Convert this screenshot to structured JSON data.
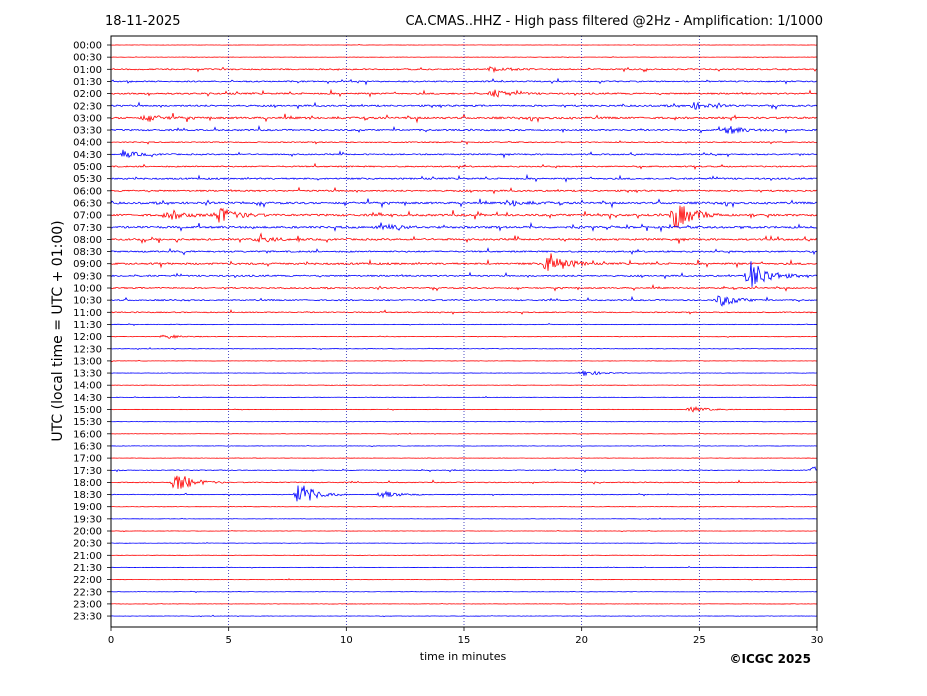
{
  "header": {
    "date": "18-11-2025",
    "title": "CA.CMAS..HHZ - High pass filtered @2Hz - Amplification: 1/1000"
  },
  "footer": {
    "copyright": "©ICGC 2025"
  },
  "colors": {
    "red_trace": "#ff0000",
    "blue_trace": "#0000ff",
    "axis": "#000000"
  },
  "chart_data": {
    "type": "line",
    "subtype": "helicorder",
    "xlabel": "time in minutes",
    "ylabel": "UTC (local time = UTC + 01:00)",
    "xlim": [
      0,
      30
    ],
    "x_ticks": [
      "0",
      "5",
      "10",
      "15",
      "20",
      "25",
      "30"
    ],
    "vertical_gridlines_at": [
      5,
      10,
      15,
      20,
      25
    ],
    "rows": [
      "00:00",
      "00:30",
      "01:00",
      "01:30",
      "02:00",
      "02:30",
      "03:00",
      "03:30",
      "04:00",
      "04:30",
      "05:00",
      "05:30",
      "06:00",
      "06:30",
      "07:00",
      "07:30",
      "08:00",
      "08:30",
      "09:00",
      "09:30",
      "10:00",
      "10:30",
      "11:00",
      "11:30",
      "12:00",
      "12:30",
      "13:00",
      "13:30",
      "14:00",
      "14:30",
      "15:00",
      "15:30",
      "16:00",
      "16:30",
      "17:00",
      "17:30",
      "18:00",
      "18:30",
      "19:00",
      "19:30",
      "20:00",
      "20:30",
      "21:00",
      "21:30",
      "22:00",
      "22:30",
      "23:00",
      "23:30"
    ],
    "row_colors": [
      "red",
      "red",
      "red",
      "blue",
      "red",
      "blue",
      "red",
      "blue",
      "red",
      "blue",
      "red",
      "blue",
      "red",
      "blue",
      "red",
      "blue",
      "red",
      "blue",
      "red",
      "blue",
      "red",
      "blue",
      "red",
      "blue",
      "red",
      "blue",
      "red",
      "blue",
      "red",
      "blue",
      "red",
      "blue",
      "red",
      "blue",
      "red",
      "blue",
      "red",
      "blue",
      "red",
      "blue",
      "red",
      "blue",
      "red",
      "blue",
      "red",
      "blue",
      "red",
      "blue"
    ],
    "noise_level": [
      0.2,
      0.3,
      1.0,
      1.0,
      1.2,
      1.3,
      1.5,
      1.2,
      0.8,
      1.0,
      1.0,
      1.2,
      1.2,
      1.5,
      1.6,
      1.6,
      1.4,
      1.2,
      1.4,
      1.2,
      1.0,
      1.0,
      0.8,
      0.4,
      0.4,
      0.4,
      0.3,
      0.3,
      0.3,
      0.3,
      0.3,
      0.3,
      0.3,
      0.3,
      0.3,
      0.6,
      0.7,
      0.5,
      0.3,
      0.3,
      0.3,
      0.3,
      0.3,
      0.3,
      0.3,
      0.3,
      0.3,
      0.3
    ],
    "events": [
      {
        "row": "01:00",
        "minute": 16.2,
        "amplitude": 3
      },
      {
        "row": "02:00",
        "minute": 16.3,
        "amplitude": 4
      },
      {
        "row": "02:30",
        "minute": 24.8,
        "amplitude": 3
      },
      {
        "row": "03:00",
        "minute": 1.5,
        "amplitude": 3
      },
      {
        "row": "03:30",
        "minute": 26.2,
        "amplitude": 4
      },
      {
        "row": "04:30",
        "minute": 0.6,
        "amplitude": 3
      },
      {
        "row": "06:30",
        "minute": 17.0,
        "amplitude": 3
      },
      {
        "row": "07:00",
        "minute": 2.5,
        "amplitude": 5
      },
      {
        "row": "07:00",
        "minute": 4.6,
        "amplitude": 8
      },
      {
        "row": "07:00",
        "minute": 24.0,
        "amplitude": 14
      },
      {
        "row": "07:30",
        "minute": 11.5,
        "amplitude": 3
      },
      {
        "row": "08:00",
        "minute": 6.3,
        "amplitude": 3
      },
      {
        "row": "09:00",
        "minute": 18.6,
        "amplitude": 12
      },
      {
        "row": "09:30",
        "minute": 27.2,
        "amplitude": 16
      },
      {
        "row": "10:30",
        "minute": 25.9,
        "amplitude": 6
      },
      {
        "row": "12:00",
        "minute": 2.3,
        "amplitude": 2
      },
      {
        "row": "13:30",
        "minute": 20.1,
        "amplitude": 3
      },
      {
        "row": "15:00",
        "minute": 24.7,
        "amplitude": 3
      },
      {
        "row": "17:30",
        "minute": 29.9,
        "amplitude": 4
      },
      {
        "row": "18:00",
        "minute": 2.8,
        "amplitude": 10
      },
      {
        "row": "18:30",
        "minute": 8.0,
        "amplitude": 12
      },
      {
        "row": "18:30",
        "minute": 11.5,
        "amplitude": 4
      }
    ]
  }
}
